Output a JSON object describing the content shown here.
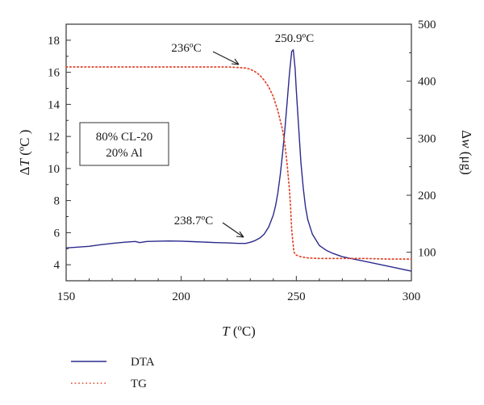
{
  "chart_data": {
    "type": "line",
    "xlabel_var": "T",
    "xlabel_unit": " (ºC)",
    "ylabel_left_prefix": "Δ",
    "ylabel_left_var": "T",
    "ylabel_left_unit": " (ºC  )",
    "ylabel_right_prefix": "Δ",
    "ylabel_right_var": "w",
    "ylabel_right_unit": " (μg)",
    "xlim": [
      150,
      300
    ],
    "ylim_left": [
      3,
      19
    ],
    "ylim_right": [
      50,
      500
    ],
    "x_ticks": [
      "150",
      "200",
      "250",
      "300"
    ],
    "y_left_ticks": [
      "4",
      "6",
      "8",
      "10",
      "12",
      "14",
      "16",
      "18"
    ],
    "y_right_ticks": [
      "100",
      "200",
      "300",
      "400",
      "500"
    ],
    "series": [
      {
        "name": "DTA",
        "axis": "left",
        "color": "#2b2a8c",
        "style": "solid",
        "x": [
          150,
          155,
          160,
          165,
          170,
          175,
          180,
          182,
          185,
          190,
          195,
          200,
          205,
          210,
          215,
          220,
          225,
          228,
          230,
          232,
          234,
          236,
          238,
          240,
          241,
          242,
          243,
          244,
          245,
          246,
          247,
          248,
          248.7,
          249.5,
          250,
          251,
          252,
          253,
          254,
          255,
          257,
          260,
          263,
          266,
          270,
          275,
          280,
          285,
          290,
          295,
          300
        ],
        "values": [
          5.05,
          5.1,
          5.15,
          5.25,
          5.33,
          5.4,
          5.45,
          5.38,
          5.45,
          5.47,
          5.48,
          5.47,
          5.44,
          5.41,
          5.38,
          5.36,
          5.33,
          5.33,
          5.4,
          5.5,
          5.65,
          5.9,
          6.35,
          7.1,
          7.7,
          8.5,
          9.6,
          10.9,
          12.4,
          14.1,
          15.9,
          17.3,
          17.4,
          16.2,
          14.9,
          12.6,
          10.4,
          8.8,
          7.6,
          6.8,
          5.9,
          5.2,
          4.9,
          4.7,
          4.5,
          4.35,
          4.2,
          4.05,
          3.9,
          3.75,
          3.6
        ]
      },
      {
        "name": "TG",
        "axis": "right",
        "color": "#e0452c",
        "style": "dotted",
        "x": [
          150,
          170,
          190,
          210,
          220,
          225,
          228,
          230,
          232,
          234,
          236,
          238,
          240,
          242,
          244,
          245,
          246,
          247,
          247.5,
          248,
          248.5,
          249,
          250,
          252,
          255,
          260,
          270,
          280,
          290,
          300
        ],
        "values": [
          425,
          425,
          425,
          425,
          425,
          424,
          423,
          421,
          417,
          411,
          402,
          390,
          373,
          348,
          315,
          290,
          255,
          210,
          180,
          140,
          118,
          100,
          95,
          92,
          90,
          89,
          89,
          89,
          88,
          88
        ]
      }
    ],
    "annotations": [
      {
        "text": "236ºC",
        "x": 233,
        "y": 421,
        "axis": "right"
      },
      {
        "text": "250.9ºC",
        "x": 248.5,
        "y": 17.45,
        "axis": "left"
      },
      {
        "text": "238.7ºC",
        "x": 240,
        "y": 5.8,
        "axis": "left"
      }
    ],
    "box_label": [
      "80% CL-20",
      "20% Al"
    ],
    "legend": [
      {
        "label": "DTA",
        "color": "#2b2a8c",
        "style": "solid"
      },
      {
        "label": "TG",
        "color": "#e0452c",
        "style": "dotted"
      }
    ],
    "legend_position": "bottom-left",
    "grid": false
  }
}
